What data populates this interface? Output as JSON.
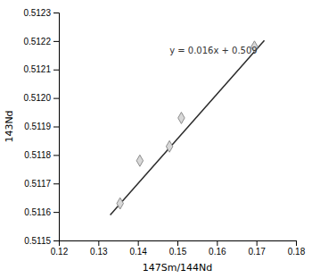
{
  "chart_data": {
    "type": "scatter",
    "xlabel": "147Sm/144Nd",
    "ylabel": "143Nd",
    "series": [
      {
        "type": "scatter",
        "marker": "diamond",
        "color": "#d8d8d8",
        "x": [
          0.1355,
          0.1405,
          0.148,
          0.151,
          0.1695
        ],
        "values": [
          0.51163,
          0.51178,
          0.51183,
          0.51193,
          0.51218
        ]
      },
      {
        "type": "line",
        "line_style": "solid",
        "color": "#2a2a2a",
        "x": [
          0.133,
          0.172
        ],
        "values": [
          0.51158943,
          0.51220212
        ]
      }
    ],
    "annotations": [
      {
        "text": "y = 0.016x + 0.509",
        "x": 0.148,
        "y": 0.51215
      }
    ],
    "xlim": [
      0.12,
      0.18
    ],
    "ylim": [
      0.5115,
      0.5123
    ],
    "xticks": [
      0.12,
      0.13,
      0.14,
      0.15,
      0.16,
      0.17,
      0.18
    ],
    "yticks": [
      0.5115,
      0.5116,
      0.5117,
      0.5118,
      0.5119,
      {
        "value": 0.512,
        "label": "0.5120"
      },
      0.5121,
      0.5122,
      0.5123
    ],
    "grid": false
  }
}
